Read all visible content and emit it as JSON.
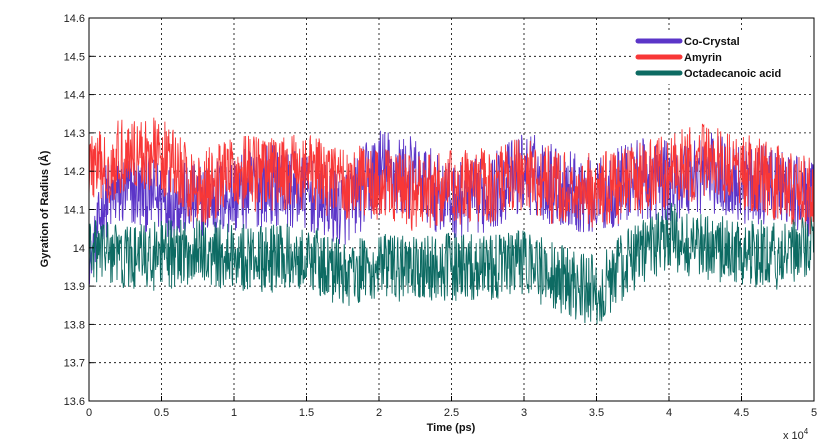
{
  "chart_data": {
    "type": "line",
    "title": "",
    "xlabel": "Time (ps)",
    "ylabel": "Gyration of Radius (Å)",
    "x_multiplier_label": "x 10",
    "x_multiplier_exponent": "4",
    "xlim": [
      0,
      5
    ],
    "ylim": [
      13.6,
      14.6
    ],
    "x_ticks": [
      0,
      0.5,
      1,
      1.5,
      2,
      2.5,
      3,
      3.5,
      4,
      4.5,
      5
    ],
    "x_tick_labels": [
      "0",
      "0.5",
      "1",
      "1.5",
      "2",
      "2.5",
      "3",
      "3.5",
      "4",
      "4.5",
      "5"
    ],
    "y_ticks": [
      13.6,
      13.7,
      13.8,
      13.9,
      14,
      14.1,
      14.2,
      14.3,
      14.4,
      14.5,
      14.6
    ],
    "y_tick_labels": [
      "13.6",
      "13.7",
      "13.8",
      "13.9",
      "14",
      "14.1",
      "14.2",
      "14.3",
      "14.4",
      "14.5",
      "14.6"
    ],
    "grid": true,
    "legend_position": "top-right",
    "series": [
      {
        "name": "Co-Crystal",
        "color": "#5b35c8",
        "x": [
          0,
          0.1,
          0.25,
          0.5,
          0.75,
          1,
          1.25,
          1.5,
          1.75,
          2,
          2.25,
          2.5,
          2.75,
          3,
          3.25,
          3.5,
          3.75,
          4,
          4.25,
          4.5,
          4.75,
          5
        ],
        "y": [
          13.95,
          14.12,
          14.15,
          14.13,
          14.12,
          14.14,
          14.17,
          14.14,
          14.1,
          14.2,
          14.18,
          14.12,
          14.14,
          14.2,
          14.16,
          14.13,
          14.18,
          14.17,
          14.2,
          14.17,
          14.16,
          14.12
        ],
        "spread": [
          0.05,
          0.1,
          0.1,
          0.1,
          0.1,
          0.11,
          0.11,
          0.1,
          0.1,
          0.12,
          0.11,
          0.1,
          0.1,
          0.11,
          0.11,
          0.1,
          0.11,
          0.11,
          0.11,
          0.11,
          0.1,
          0.1
        ]
      },
      {
        "name": "Amyrin",
        "color": "#f83737",
        "x": [
          0,
          0.1,
          0.25,
          0.5,
          0.75,
          1,
          1.25,
          1.5,
          1.75,
          2,
          2.25,
          2.5,
          2.75,
          3,
          3.25,
          3.5,
          3.75,
          4,
          4.25,
          4.5,
          4.75,
          5
        ],
        "y": [
          14.22,
          14.2,
          14.25,
          14.24,
          14.15,
          14.2,
          14.19,
          14.2,
          14.17,
          14.17,
          14.14,
          14.16,
          14.16,
          14.2,
          14.15,
          14.15,
          14.17,
          14.2,
          14.23,
          14.2,
          14.17,
          14.13
        ],
        "spread": [
          0.1,
          0.1,
          0.1,
          0.1,
          0.1,
          0.1,
          0.1,
          0.1,
          0.1,
          0.1,
          0.1,
          0.1,
          0.1,
          0.1,
          0.1,
          0.1,
          0.1,
          0.1,
          0.1,
          0.1,
          0.1,
          0.1
        ]
      },
      {
        "name": "Octadecanoic acid",
        "color": "#0d6b63",
        "x": [
          0,
          0.1,
          0.25,
          0.5,
          0.75,
          1,
          1.25,
          1.5,
          1.75,
          2,
          2.25,
          2.5,
          2.75,
          3,
          3.25,
          3.5,
          3.75,
          4,
          4.25,
          4.5,
          4.75,
          5
        ],
        "y": [
          13.98,
          14.0,
          13.97,
          13.98,
          13.99,
          13.98,
          13.97,
          13.98,
          13.93,
          13.95,
          13.94,
          13.95,
          13.95,
          13.96,
          13.92,
          13.88,
          13.97,
          14.03,
          14.0,
          13.99,
          13.98,
          14.0
        ],
        "spread": [
          0.09,
          0.09,
          0.09,
          0.09,
          0.09,
          0.09,
          0.09,
          0.09,
          0.09,
          0.09,
          0.09,
          0.09,
          0.09,
          0.09,
          0.09,
          0.1,
          0.09,
          0.09,
          0.09,
          0.09,
          0.09,
          0.09
        ]
      }
    ]
  }
}
